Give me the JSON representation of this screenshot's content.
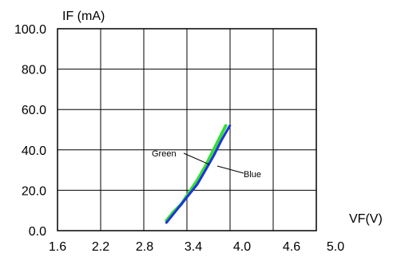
{
  "chart_data": {
    "type": "line",
    "ylabel": "IF (mA)",
    "xlabel": "VF(V)",
    "x_ticks": [
      "1.6",
      "2.2",
      "2.8",
      "3.4",
      "4.0",
      "4.6",
      "5.0"
    ],
    "y_ticks": [
      "0.0",
      "20.0",
      "40.0",
      "60.0",
      "80.0",
      "100.0"
    ],
    "xlim": [
      1.6,
      5.0
    ],
    "ylim": [
      0,
      100
    ],
    "grid": true,
    "series": [
      {
        "name": "Green",
        "color": "#33dd33",
        "x": [
          3.07,
          3.15,
          3.25,
          3.35,
          3.45,
          3.55,
          3.65,
          3.75,
          3.8
        ],
        "y": [
          5,
          9,
          13,
          19,
          25,
          32,
          40,
          48,
          52
        ]
      },
      {
        "name": "Blue",
        "color": "#1f33dd",
        "x": [
          3.07,
          3.15,
          3.25,
          3.35,
          3.45,
          3.55,
          3.65,
          3.75,
          3.85
        ],
        "y": [
          4,
          8,
          13,
          18,
          23,
          30,
          37,
          45,
          52
        ]
      }
    ]
  }
}
